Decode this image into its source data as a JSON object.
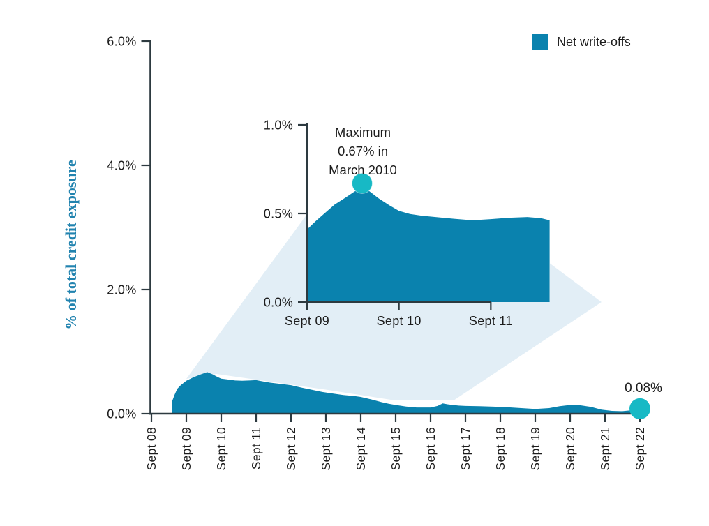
{
  "page": {
    "background": "#ffffff"
  },
  "y_axis_title": "% of total credit exposure",
  "legend": {
    "label": "Net write-offs",
    "swatch_color": "#0a82ae"
  },
  "colors": {
    "area_fill": "#0a82ae",
    "zoom_wedge": "#e2eef6",
    "marker": "#17b9c5",
    "axis_line": "#2d3a40",
    "text": "#1c1c1c",
    "axis_title_text": "#2183af"
  },
  "chart_data": [
    {
      "id": "main",
      "type": "area",
      "title": "",
      "xlabel": "",
      "ylabel": "% of total credit exposure",
      "legend_entry": "Net write-offs",
      "x_ticks": [
        "Sept 08",
        "Sept 09",
        "Sept 10",
        "Sept 11",
        "Sept 12",
        "Sept 13",
        "Sept 14",
        "Sept 15",
        "Sept 16",
        "Sept 17",
        "Sept 18",
        "Sept 19",
        "Sept 20",
        "Sept 21",
        "Sept 22"
      ],
      "y_ticks": [
        "0.0%",
        "2.0%",
        "4.0%",
        "6.0%"
      ],
      "ylim": [
        0,
        6
      ],
      "grid": false,
      "series": [
        {
          "name": "Net write-offs",
          "unit": "% of total credit exposure",
          "points": [
            [
              8.58,
              0.18
            ],
            [
              8.66,
              0.3
            ],
            [
              8.74,
              0.4
            ],
            [
              8.84,
              0.46
            ],
            [
              9.0,
              0.53
            ],
            [
              9.2,
              0.585
            ],
            [
              9.4,
              0.63
            ],
            [
              9.6,
              0.67
            ],
            [
              9.75,
              0.635
            ],
            [
              9.9,
              0.59
            ],
            [
              10.0,
              0.565
            ],
            [
              10.2,
              0.55
            ],
            [
              10.4,
              0.535
            ],
            [
              10.6,
              0.53
            ],
            [
              10.8,
              0.535
            ],
            [
              11.0,
              0.54
            ],
            [
              11.2,
              0.52
            ],
            [
              11.4,
              0.5
            ],
            [
              11.7,
              0.48
            ],
            [
              12.0,
              0.46
            ],
            [
              12.3,
              0.42
            ],
            [
              12.6,
              0.385
            ],
            [
              12.9,
              0.35
            ],
            [
              13.2,
              0.325
            ],
            [
              13.5,
              0.3
            ],
            [
              13.8,
              0.285
            ],
            [
              14.0,
              0.27
            ],
            [
              14.3,
              0.23
            ],
            [
              14.6,
              0.185
            ],
            [
              14.8,
              0.16
            ],
            [
              15.0,
              0.14
            ],
            [
              15.3,
              0.115
            ],
            [
              15.6,
              0.1
            ],
            [
              16.0,
              0.1
            ],
            [
              16.2,
              0.125
            ],
            [
              16.35,
              0.165
            ],
            [
              16.5,
              0.15
            ],
            [
              16.8,
              0.13
            ],
            [
              17.0,
              0.125
            ],
            [
              17.4,
              0.12
            ],
            [
              17.8,
              0.113
            ],
            [
              18.2,
              0.105
            ],
            [
              18.6,
              0.09
            ],
            [
              19.0,
              0.075
            ],
            [
              19.4,
              0.09
            ],
            [
              19.7,
              0.12
            ],
            [
              20.0,
              0.14
            ],
            [
              20.3,
              0.135
            ],
            [
              20.6,
              0.11
            ],
            [
              20.9,
              0.065
            ],
            [
              21.2,
              0.045
            ],
            [
              21.5,
              0.04
            ],
            [
              21.75,
              0.055
            ],
            [
              22.0,
              0.08
            ]
          ]
        }
      ],
      "end_annotation": {
        "label": "0.08%",
        "x": 22,
        "value": 0.08
      }
    },
    {
      "id": "inset-zoom",
      "type": "area",
      "title": "",
      "x_ticks": [
        "Sept 09",
        "Sept 10",
        "Sept 11"
      ],
      "y_ticks": [
        "0.0%",
        "0.5%",
        "1.0%"
      ],
      "ylim": [
        0,
        1
      ],
      "grid": false,
      "series": [
        {
          "name": "Net write-offs (zoomed)",
          "unit": "% of total credit exposure",
          "points": [
            [
              9.0,
              0.41
            ],
            [
              9.1,
              0.46
            ],
            [
              9.2,
              0.505
            ],
            [
              9.3,
              0.55
            ],
            [
              9.42,
              0.59
            ],
            [
              9.52,
              0.625
            ],
            [
              9.6,
              0.65
            ],
            [
              9.68,
              0.625
            ],
            [
              9.78,
              0.585
            ],
            [
              9.9,
              0.545
            ],
            [
              10.0,
              0.515
            ],
            [
              10.12,
              0.497
            ],
            [
              10.25,
              0.487
            ],
            [
              10.4,
              0.48
            ],
            [
              10.6,
              0.47
            ],
            [
              10.8,
              0.462
            ],
            [
              11.0,
              0.468
            ],
            [
              11.2,
              0.476
            ],
            [
              11.4,
              0.48
            ],
            [
              11.55,
              0.473
            ],
            [
              11.64,
              0.462
            ]
          ]
        }
      ],
      "max_annotation": {
        "lines": [
          "Maximum",
          "0.67% in",
          "March 2010"
        ],
        "x": 9.6,
        "value": 0.67
      }
    }
  ]
}
